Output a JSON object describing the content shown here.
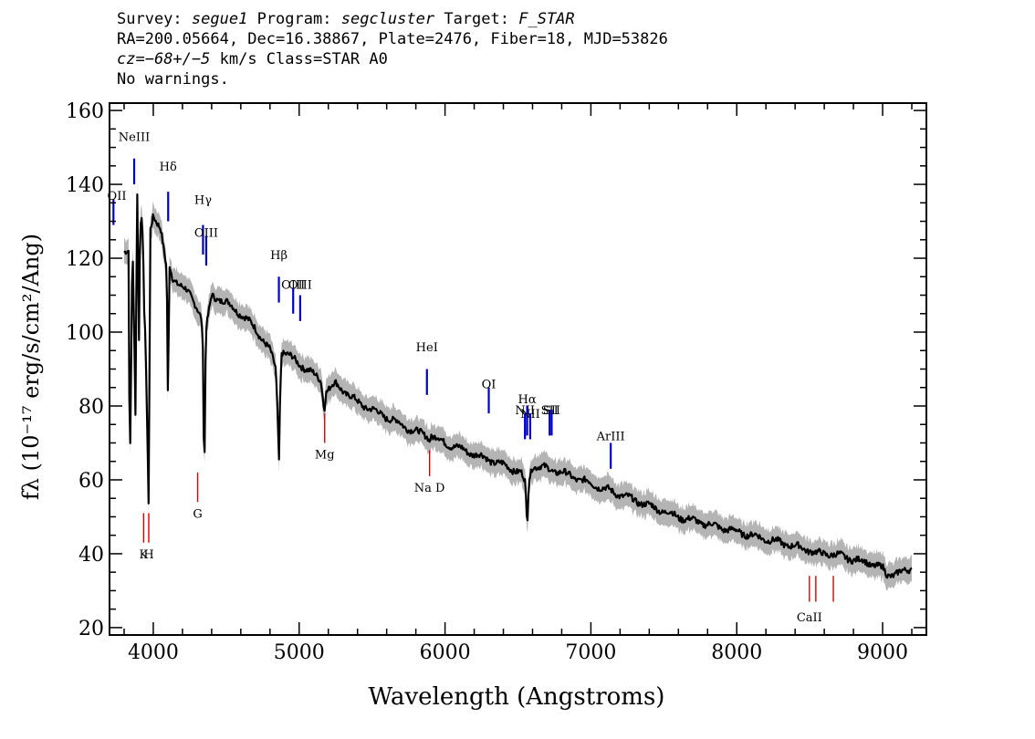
{
  "header": {
    "survey_label": "Survey:",
    "survey": "segue1",
    "program_label": "Program:",
    "program": "segcluster",
    "target_label": "Target:",
    "target": "F_STAR",
    "line2": "RA=200.05664, Dec=16.38867, Plate=2476, Fiber=18, MJD=53826",
    "cz_label": "cz=",
    "cz_value": "−68+/−5",
    "cz_unit": "km/s Class=STAR A0",
    "warnings": "No warnings."
  },
  "colors": {
    "spectrum": "#000000",
    "error_band": "#b4b4b4",
    "emission_marker": "#0000cc",
    "absorption_marker": "#dd0000",
    "axes": "#000000"
  },
  "chart_data": {
    "type": "line",
    "xlabel": "Wavelength (Angstroms)",
    "ylabel": "fλ (10⁻¹⁷ erg/s/cm²/Ang)",
    "xlim": [
      3700,
      9300
    ],
    "ylim": [
      18,
      162
    ],
    "xticks": [
      4000,
      5000,
      6000,
      7000,
      8000,
      9000
    ],
    "yticks": [
      20,
      40,
      60,
      80,
      100,
      120,
      140,
      160
    ],
    "grid": false,
    "series": [
      {
        "x": [
          3800,
          3830,
          3835,
          3845,
          3850,
          3860,
          3870,
          3880,
          3885,
          3890,
          3895,
          3900,
          3910,
          3920,
          3930,
          3935,
          3945,
          3960,
          3965,
          3970,
          3975,
          3980,
          4000,
          4050,
          4090,
          4097,
          4102,
          4106,
          4112,
          4130,
          4180,
          4250,
          4300,
          4330,
          4340,
          4345,
          4352,
          4360,
          4400,
          4500,
          4600,
          4700,
          4800,
          4840,
          4855,
          4861,
          4866,
          4880,
          4950,
          5050,
          5150,
          5170,
          5175,
          5185,
          5250,
          5400,
          5600,
          5800,
          5880,
          5893,
          5905,
          6000,
          6200,
          6400,
          6520,
          6550,
          6558,
          6563,
          6568,
          6575,
          6600,
          6800,
          7000,
          7200,
          7400,
          7600,
          7800,
          8000,
          8200,
          8400,
          8500,
          8550,
          8650,
          8750,
          8850,
          8950,
          9000,
          9030,
          9100,
          9150,
          9200
        ],
        "y": [
          121,
          122,
          85,
          63,
          110,
          120,
          98,
          74,
          121,
          138,
          125,
          91,
          128,
          131,
          125,
          106,
          100,
          70,
          62,
          48,
          100,
          128,
          132,
          128,
          117,
          102,
          71,
          100,
          118,
          115,
          113,
          110,
          107,
          104,
          96,
          72,
          67,
          100,
          110,
          108,
          105,
          101,
          95,
          90,
          75,
          62,
          78,
          95,
          93,
          90,
          87,
          80,
          80,
          84,
          86,
          81,
          77,
          73,
          72,
          71,
          72,
          70,
          67,
          64,
          62,
          59,
          52,
          46,
          52,
          60,
          64,
          62,
          59,
          56,
          53,
          50,
          48,
          46,
          44,
          42,
          41,
          40,
          40,
          39,
          38,
          37,
          36,
          34,
          35,
          35,
          36
        ]
      }
    ],
    "line_markers": [
      {
        "label": "NeIII",
        "wave": 3869,
        "kind": "emission",
        "y1": 147,
        "y2": 140,
        "label_y": 153
      },
      {
        "label": "OII",
        "wave": 3727,
        "kind": "emission",
        "y1": 136,
        "y2": 129,
        "label_y": 137
      },
      {
        "label": "Hδ",
        "wave": 4102,
        "kind": "emission",
        "y1": 138,
        "y2": 130,
        "label_y": 145
      },
      {
        "label": "Hγ",
        "wave": 4341,
        "kind": "emission",
        "y1": 129,
        "y2": 121,
        "label_y": 136
      },
      {
        "label": "OIII",
        "wave": 4363,
        "kind": "emission",
        "y1": 126,
        "y2": 118,
        "label_y": 127
      },
      {
        "label": "Hβ",
        "wave": 4861,
        "kind": "emission",
        "y1": 115,
        "y2": 108,
        "label_y": 121
      },
      {
        "label": "OIII",
        "wave": 4959,
        "kind": "emission",
        "y1": 112,
        "y2": 105,
        "label_y": 113
      },
      {
        "label": "OIII",
        "wave": 5007,
        "kind": "emission",
        "y1": 110,
        "y2": 103,
        "label_y": 113
      },
      {
        "label": "HeI",
        "wave": 5876,
        "kind": "emission",
        "y1": 90,
        "y2": 83,
        "label_y": 96
      },
      {
        "label": "OI",
        "wave": 6300,
        "kind": "emission",
        "y1": 85,
        "y2": 78,
        "label_y": 86
      },
      {
        "label": "NII",
        "wave": 6548,
        "kind": "emission",
        "y1": 78,
        "y2": 71,
        "label_y": 79
      },
      {
        "label": "Hα",
        "wave": 6563,
        "kind": "emission",
        "y1": 80,
        "y2": 72,
        "label_y": 82
      },
      {
        "label": "NII",
        "wave": 6584,
        "kind": "emission",
        "y1": 78,
        "y2": 71,
        "label_y": 78
      },
      {
        "label": "SII",
        "wave": 6717,
        "kind": "emission",
        "y1": 79,
        "y2": 72,
        "label_y": 79
      },
      {
        "label": "SII",
        "wave": 6731,
        "kind": "emission",
        "y1": 79,
        "y2": 72,
        "label_y": 79
      },
      {
        "label": "ArIII",
        "wave": 7136,
        "kind": "emission",
        "y1": 70,
        "y2": 63,
        "label_y": 72
      },
      {
        "label": "K",
        "wave": 3934,
        "kind": "absorption",
        "y1": 51,
        "y2": 43,
        "label_y": 40
      },
      {
        "label": "H",
        "wave": 3969,
        "kind": "absorption",
        "y1": 51,
        "y2": 43,
        "label_y": 40
      },
      {
        "label": "G",
        "wave": 4304,
        "kind": "absorption",
        "y1": 62,
        "y2": 54,
        "label_y": 51
      },
      {
        "label": "Mg",
        "wave": 5175,
        "kind": "absorption",
        "y1": 78,
        "y2": 70,
        "label_y": 67
      },
      {
        "label": "Na D",
        "wave": 5894,
        "kind": "absorption",
        "y1": 68,
        "y2": 61,
        "label_y": 58
      },
      {
        "label": "CaII",
        "wave": 8498,
        "kind": "absorption",
        "y1": 34,
        "y2": 27,
        "label_y": 23
      },
      {
        "label": "",
        "wave": 8542,
        "kind": "absorption",
        "y1": 34,
        "y2": 27
      },
      {
        "label": "",
        "wave": 8662,
        "kind": "absorption",
        "y1": 34,
        "y2": 27
      }
    ]
  }
}
